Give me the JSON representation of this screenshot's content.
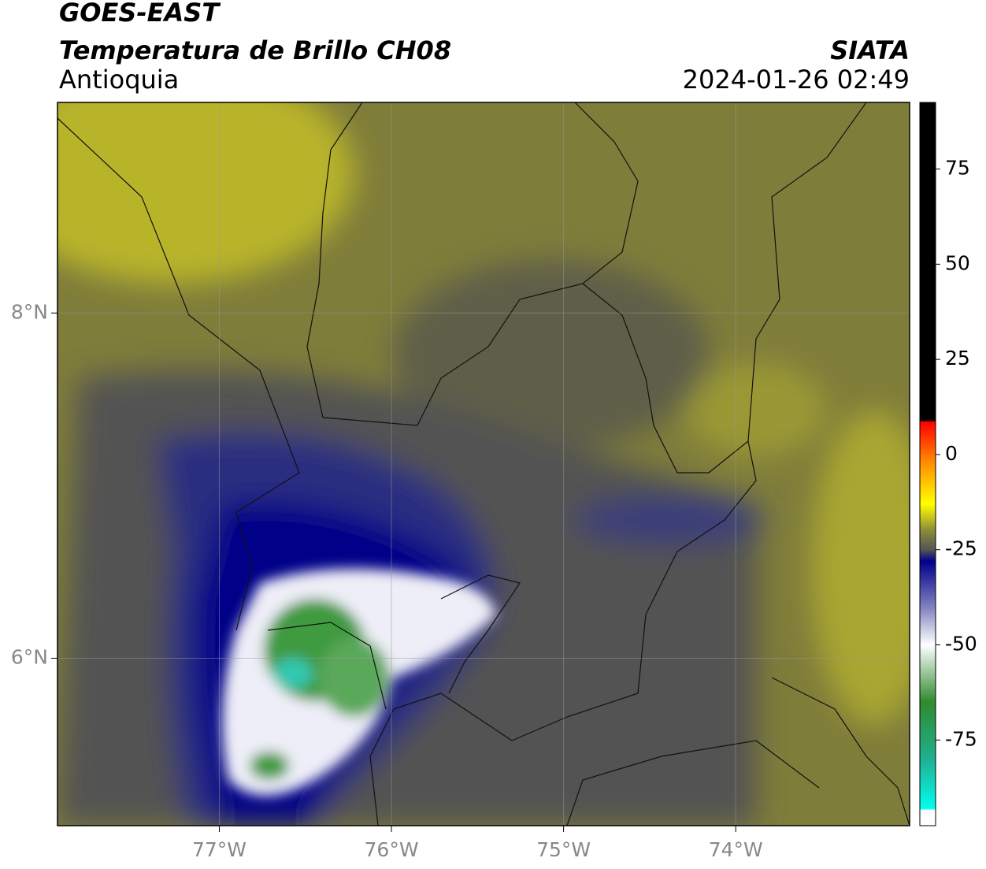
{
  "header": {
    "satellite": "GOES-EAST",
    "product": "Temperatura de Brillo CH08",
    "region": "Antioquia",
    "source": "SIATA",
    "datetime": "2024-01-26 02:49"
  },
  "map": {
    "lonlim": [
      -77.94,
      -72.99
    ],
    "latlim": [
      5.03,
      9.22
    ],
    "lonticks": [
      {
        "value": -77,
        "label": "77°W"
      },
      {
        "value": -76,
        "label": "76°W"
      },
      {
        "value": -75,
        "label": "75°W"
      },
      {
        "value": -74,
        "label": "74°W"
      }
    ],
    "latticks": [
      {
        "value": 8,
        "label": "8°N"
      },
      {
        "value": 6,
        "label": "6°N"
      }
    ],
    "grid": true
  },
  "colorbar": {
    "lim": [
      -97.5,
      92.5
    ],
    "ticks": [
      75,
      50,
      25,
      0,
      -25,
      -50,
      -75
    ],
    "stops": [
      [
        92.5,
        "#000000"
      ],
      [
        9,
        "#000000"
      ],
      [
        8.5,
        "#ff0000"
      ],
      [
        -2,
        "#ff8c00"
      ],
      [
        -13,
        "#ffff00"
      ],
      [
        -20,
        "#8a8a3a"
      ],
      [
        -25,
        "#555555"
      ],
      [
        -28,
        "#00008b"
      ],
      [
        -40,
        "#8080c0"
      ],
      [
        -50,
        "#ffffff"
      ],
      [
        -58,
        "#90c090"
      ],
      [
        -65,
        "#2e8b2e"
      ],
      [
        -80,
        "#20b090"
      ],
      [
        -93,
        "#00ffee"
      ],
      [
        -93.5,
        "#ffffff"
      ],
      [
        -97.5,
        "#ffffff"
      ]
    ]
  }
}
